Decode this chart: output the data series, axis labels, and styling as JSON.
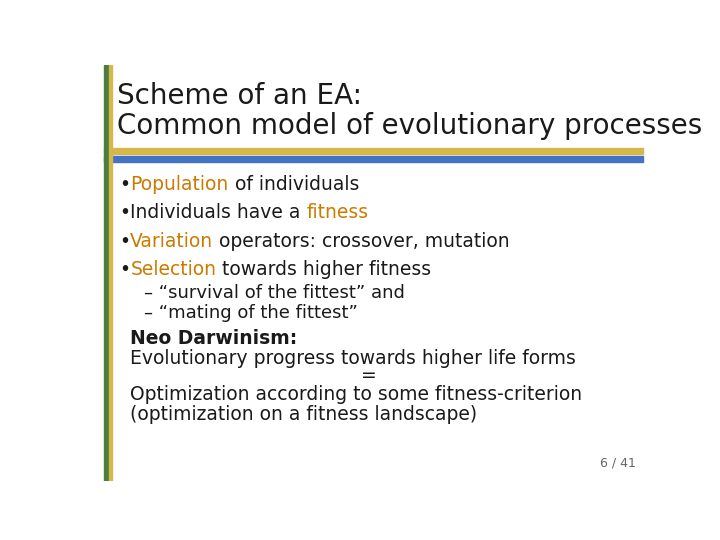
{
  "title_line1": "Scheme of an EA:",
  "title_line2": "Common model of evolutionary processes",
  "title_color": "#1a1a1a",
  "title_fontsize": 20,
  "background_color": "#ffffff",
  "left_bar_green_color": "#4d7c3f",
  "left_bar_gold_color": "#d4b84a",
  "top_line_gold_color": "#d4b84a",
  "top_line_blue_color": "#4472c4",
  "orange_color": "#cc7a00",
  "black_color": "#1a1a1a",
  "bullet_items": [
    {
      "parts": [
        {
          "text": "Population",
          "color": "#cc7a00"
        },
        {
          "text": " of individuals",
          "color": "#1a1a1a"
        }
      ]
    },
    {
      "parts": [
        {
          "text": "Individuals have a ",
          "color": "#1a1a1a"
        },
        {
          "text": "fitness",
          "color": "#cc7a00"
        }
      ]
    },
    {
      "parts": [
        {
          "text": "Variation",
          "color": "#cc7a00"
        },
        {
          "text": " operators: crossover, mutation",
          "color": "#1a1a1a"
        }
      ]
    },
    {
      "parts": [
        {
          "text": "Selection",
          "color": "#cc7a00"
        },
        {
          "text": " towards higher fitness",
          "color": "#1a1a1a"
        }
      ]
    }
  ],
  "sub_items": [
    "– “survival of the fittest” and",
    "– “mating of the fittest”"
  ],
  "neo_bold": "Neo Darwinism:",
  "neo_text1": "Evolutionary progress towards higher life forms",
  "neo_text2": "=",
  "neo_text3": "Optimization according to some fitness-criterion",
  "neo_text4": "(optimization on a fitness landscape)",
  "page_number": "6 / 41",
  "content_fontsize": 13.5,
  "sub_fontsize": 13,
  "neo_fontsize": 13.5
}
